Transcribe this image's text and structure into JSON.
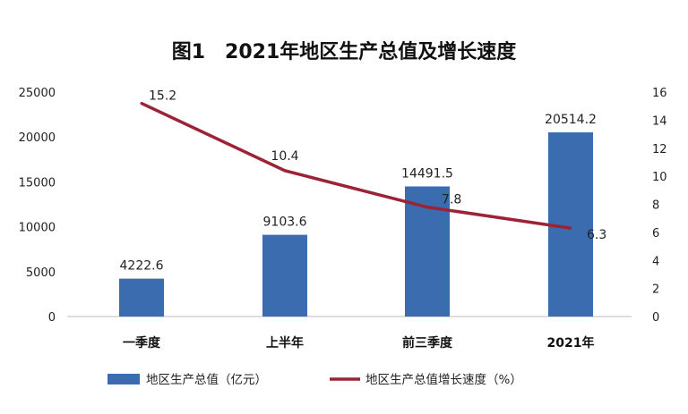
{
  "chart_data": {
    "type": "bar+line",
    "title": "图1　2021年地区生产总值及增长速度",
    "categories": [
      "一季度",
      "上半年",
      "前三季度",
      "2021年"
    ],
    "series": [
      {
        "name": "地区生产总值（亿元）",
        "type": "bar",
        "axis": "left",
        "values": [
          4222.6,
          9103.6,
          14491.5,
          20514.2
        ],
        "labels": [
          "4222.6",
          "9103.6",
          "14491.5",
          "20514.2"
        ],
        "color": "#3b6cb0"
      },
      {
        "name": "地区生产总值增长速度（%）",
        "type": "line",
        "axis": "right",
        "values": [
          15.2,
          10.4,
          7.8,
          6.3
        ],
        "labels": [
          "15.2",
          "10.4",
          "7.8",
          "6.3"
        ],
        "color": "#9b2335"
      }
    ],
    "left_axis": {
      "range": [
        0,
        25000
      ],
      "ticks": [
        "0",
        "5000",
        "10000",
        "15000",
        "20000",
        "25000"
      ]
    },
    "right_axis": {
      "range": [
        0,
        16
      ],
      "ticks": [
        "0",
        "2",
        "4",
        "6",
        "8",
        "10",
        "12",
        "14",
        "16"
      ]
    },
    "grid": false,
    "legend_position": "bottom"
  }
}
